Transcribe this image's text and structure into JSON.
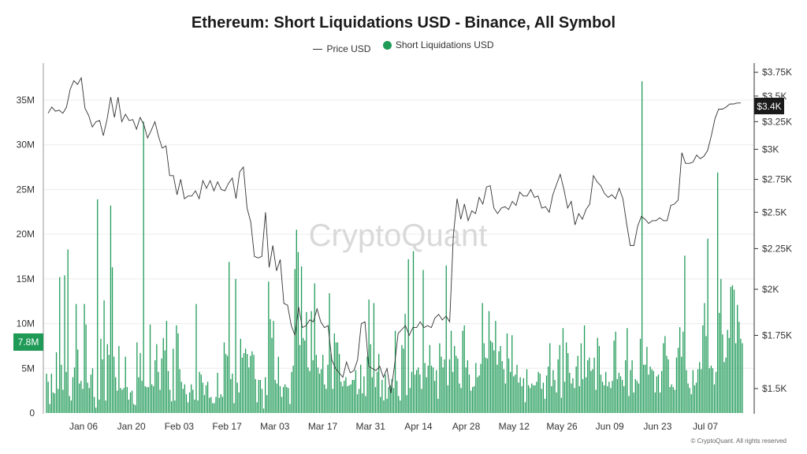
{
  "chart_data": {
    "type": "bar+line",
    "title": "Ethereum: Short Liquidations USD - Binance, All Symbol",
    "watermark": "CryptoQuant",
    "copyright": "© CryptoQuant. All rights reserved",
    "legend": [
      {
        "name": "Price USD",
        "marker": "line",
        "color": "#333333"
      },
      {
        "name": "Short Liquidations USD",
        "marker": "dot",
        "color": "#1f9a57"
      }
    ],
    "x_tick_labels": [
      "Jan 06",
      "Jan 20",
      "Feb 03",
      "Feb 17",
      "Mar 03",
      "Mar 17",
      "Mar 31",
      "Apr 14",
      "Apr 28",
      "May 12",
      "May 26",
      "Jun 09",
      "Jun 23",
      "Jul 07"
    ],
    "y_left": {
      "ticks": [
        "0",
        "5M",
        "10M",
        "15M",
        "20M",
        "25M",
        "30M",
        "35M"
      ],
      "values": [
        0,
        5,
        10,
        15,
        20,
        25,
        30,
        35
      ],
      "ylim": [
        0,
        39
      ],
      "unit": "M"
    },
    "y_right": {
      "ticks": [
        "$1.5K",
        "$1.75K",
        "$2K",
        "$2.25K",
        "$2.5K",
        "$2.75K",
        "$3K",
        "$3.25K",
        "$3.5K",
        "$3.75K"
      ],
      "values": [
        1500,
        1750,
        2000,
        2250,
        2500,
        2750,
        3000,
        3250,
        3500,
        3750
      ],
      "scale": "log"
    },
    "last_value_labels": {
      "left": "7.8M",
      "right": "$3.4K"
    },
    "series": [
      {
        "name": "Short Liquidations USD",
        "type": "bar",
        "color": "#1f9a57",
        "unit": "M USD",
        "values": [
          4.4,
          3.5,
          1.0,
          4.4,
          2.3,
          2.2,
          6.8,
          2.7,
          15.2,
          5.4,
          2.6,
          15.4,
          4.6,
          18.3,
          1.9,
          1.4,
          4.0,
          5.1,
          12.2,
          7.1,
          3.3,
          3.6,
          2.7,
          12.2,
          9.9,
          3.4,
          2.8,
          4.3,
          5.0,
          1.8,
          0.6,
          23.9,
          1.5,
          8.3,
          6.0,
          12.6,
          1.4,
          7.7,
          6.5,
          23.2,
          16.3,
          6.3,
          4.0,
          2.5,
          7.5,
          2.8,
          2.6,
          2.8,
          6.3,
          2.9,
          1.5,
          2.3,
          2.5,
          1.0,
          0.9,
          7.9,
          4.0,
          6.7,
          3.6,
          32.6,
          3.0,
          2.9,
          2.9,
          9.9,
          3.2,
          3.0,
          5.9,
          7.7,
          4.6,
          2.6,
          6.1,
          8.4,
          7.0,
          10.3,
          4.7,
          2.6,
          1.3,
          7.2,
          1.4,
          9.8,
          8.9,
          4.9,
          3.5,
          2.7,
          3.2,
          2.1,
          1.2,
          2.3,
          3.2,
          2.6,
          1.5,
          12.2,
          1.4,
          4.6,
          4.3,
          3.4,
          2.0,
          3.1,
          3.5,
          1.7,
          1.8,
          1.1,
          1.1,
          1.8,
          4.5,
          1.7,
          2.1,
          1.8,
          7.9,
          6.6,
          6.4,
          16.9,
          3.8,
          4.4,
          1.1,
          15.0,
          3.4,
          2.3,
          8.3,
          6.2,
          6.7,
          7.2,
          6.6,
          5.1,
          6.4,
          6.9,
          6.5,
          3.8,
          1.2,
          3.7,
          3.7,
          2.7,
          0.5,
          4.0,
          2.0,
          14.7,
          10.5,
          8.4,
          10.3,
          3.7,
          3.3,
          6.3,
          3.0,
          1.8,
          2.9,
          3.2,
          2.9,
          2.8,
          1.0,
          4.6,
          5.3,
          16.1,
          20.5,
          18.0,
          7.6,
          16.4,
          8.4,
          8.1,
          11.3,
          5.1,
          4.7,
          11.4,
          5.9,
          14.5,
          6.5,
          5.1,
          4.4,
          4.9,
          6.5,
          3.2,
          2.7,
          5.4,
          13.4,
          6.6,
          2.7,
          8.9,
          7.9,
          7.9,
          6.6,
          3.5,
          3.0,
          3.6,
          4.0,
          3.0,
          3.1,
          3.2,
          3.7,
          3.7,
          4.8,
          2.1,
          2.7,
          5.4,
          2.2,
          4.1,
          1.9,
          6.3,
          12.7,
          7.7,
          4.0,
          12.3,
          2.9,
          4.6,
          6.6,
          1.8,
          3.7,
          1.4,
          4.3,
          1.6,
          2.9,
          3.1,
          3.8,
          2.8,
          9.2,
          3.6,
          1.9,
          1.4,
          7.6,
          7.2,
          11.1,
          2.0,
          17.2,
          2.8,
          4.6,
          18.1,
          4.3,
          4.8,
          5.1,
          4.3,
          2.7,
          16.0,
          5.6,
          4.0,
          5.3,
          7.6,
          5.3,
          5.1,
          3.6,
          4.8,
          1.6,
          7.8,
          6.3,
          5.1,
          6.0,
          16.5,
          3.1,
          6.0,
          9.2,
          4.6,
          7.5,
          6.4,
          6.1,
          3.3,
          2.8,
          9.2,
          9.8,
          5.1,
          5.9,
          4.3,
          2.5,
          2.9,
          3.0,
          5.6,
          4.0,
          4.2,
          5.5,
          12.3,
          7.8,
          6.2,
          6.1,
          11.4,
          8.1,
          7.9,
          7.0,
          10.3,
          5.4,
          6.9,
          7.5,
          5.8,
          4.9,
          3.3,
          8.9,
          6.1,
          4.6,
          8.7,
          4.1,
          4.3,
          5.4,
          3.4,
          4.0,
          3.0,
          3.9,
          1.2,
          4.9,
          3.1,
          2.8,
          3.3,
          3.1,
          3.1,
          3.5,
          4.6,
          4.4,
          2.7,
          3.4,
          1.6,
          4.2,
          5.2,
          7.8,
          3.0,
          4.8,
          3.7,
          2.3,
          6.0,
          7.6,
          1.7,
          9.5,
          3.5,
          7.9,
          6.7,
          4.5,
          3.3,
          3.9,
          2.8,
          5.2,
          6.4,
          3.0,
          7.8,
          3.8,
          9.8,
          4.0,
          5.9,
          6.2,
          4.7,
          4.9,
          6.2,
          2.6,
          8.4,
          7.5,
          4.3,
          3.5,
          3.1,
          4.6,
          3.0,
          3.5,
          2.8,
          3.6,
          8.1,
          9.1,
          3.8,
          4.5,
          4.1,
          3.7,
          3.0,
          5.9,
          9.5,
          1.9,
          4.8,
          5.9,
          2.3,
          3.8,
          3.6,
          3.3,
          8.3,
          37.1,
          5.4,
          5.4,
          7.4,
          4.3,
          5.2,
          4.9,
          4.7,
          2.3,
          4.1,
          4.3,
          2.3,
          4.7,
          7.8,
          8.6,
          6.4,
          6.0,
          2.9,
          3.2,
          2.9,
          2.6,
          6.2,
          7.3,
          9.6,
          6.3,
          9.1,
          17.6,
          4.8,
          3.3,
          2.8,
          2.1,
          4.8,
          3.1,
          3.4,
          4.9,
          5.7,
          4.9,
          9.8,
          12.3,
          8.6,
          19.5,
          5.0,
          5.3,
          5.0,
          3.2,
          4.6,
          26.9,
          11.2,
          15.0,
          8.8,
          5.7,
          6.2,
          9.3,
          8.4,
          14.1,
          14.3,
          13.8,
          7.8,
          12.1,
          10.2,
          8.3,
          7.8
        ]
      },
      {
        "name": "Price USD",
        "type": "line",
        "color": "#333333",
        "unit": "USD",
        "values": [
          3330,
          3390,
          3350,
          3360,
          3330,
          3390,
          3570,
          3660,
          3620,
          3690,
          3380,
          3310,
          3200,
          3250,
          3260,
          3120,
          3270,
          3490,
          3290,
          3490,
          3250,
          3320,
          3260,
          3270,
          3180,
          3290,
          3220,
          3100,
          3170,
          3250,
          3110,
          3010,
          3030,
          2780,
          2780,
          2630,
          2750,
          2600,
          2620,
          2620,
          2660,
          2600,
          2740,
          2680,
          2740,
          2660,
          2730,
          2670,
          2660,
          2720,
          2760,
          2600,
          2810,
          2850,
          2530,
          2430,
          2200,
          2190,
          2200,
          2500,
          2130,
          2270,
          2110,
          2180,
          1920,
          1910,
          1800,
          1750,
          1900,
          1790,
          1800,
          1830,
          1820,
          1890,
          1820,
          1790,
          1800,
          1630,
          1590,
          1570,
          1550,
          1620,
          1570,
          1580,
          1630,
          1810,
          1820,
          1600,
          1590,
          1580,
          1600,
          1550,
          1590,
          1480,
          1600,
          1760,
          1780,
          1800,
          1750,
          1790,
          1790,
          1820,
          1790,
          1800,
          1790,
          1840,
          1860,
          1830,
          1850,
          1820,
          2340,
          2600,
          2450,
          2560,
          2440,
          2510,
          2490,
          2610,
          2560,
          2690,
          2700,
          2530,
          2490,
          2530,
          2540,
          2520,
          2580,
          2550,
          2650,
          2620,
          2620,
          2670,
          2610,
          2620,
          2530,
          2540,
          2500,
          2630,
          2710,
          2790,
          2670,
          2530,
          2580,
          2410,
          2490,
          2450,
          2520,
          2560,
          2780,
          2730,
          2700,
          2640,
          2610,
          2630,
          2600,
          2680,
          2600,
          2420,
          2270,
          2270,
          2400,
          2470,
          2450,
          2420,
          2440,
          2440,
          2460,
          2440,
          2440,
          2550,
          2560,
          2590,
          2970,
          2880,
          2880,
          2890,
          2950,
          2920,
          2940,
          2990,
          3120,
          3280,
          3370,
          3370,
          3390,
          3420,
          3420,
          3430,
          3430
        ]
      }
    ]
  }
}
